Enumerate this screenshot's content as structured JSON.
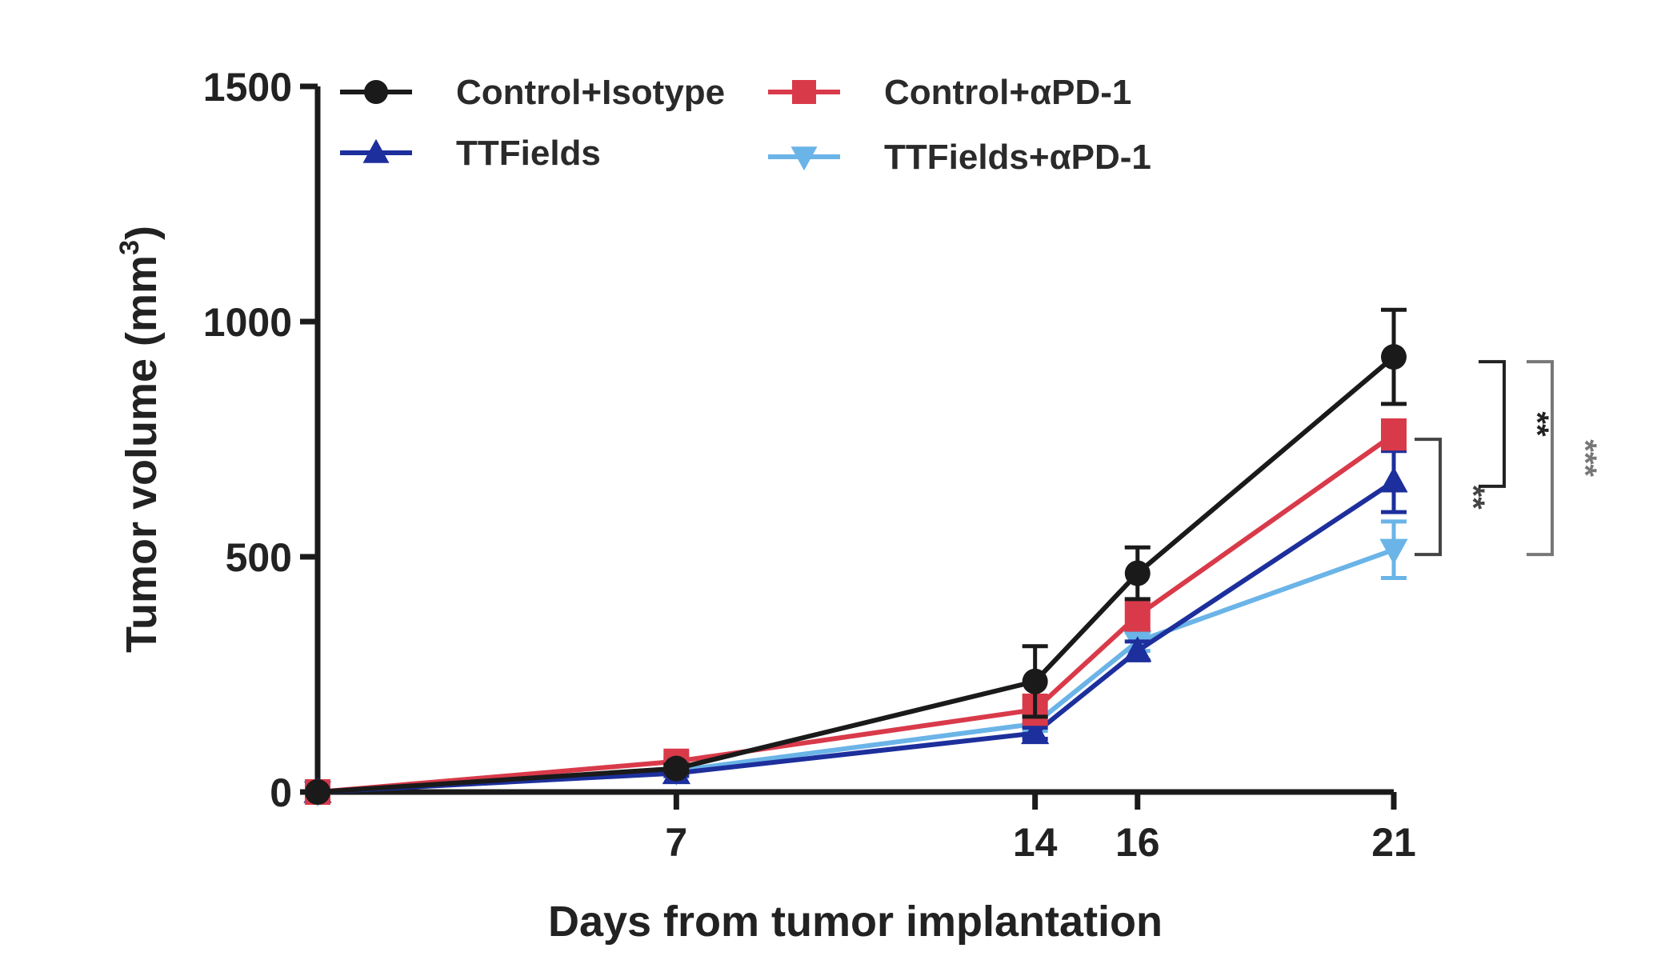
{
  "chart_data": {
    "type": "line",
    "x": [
      0,
      7,
      14,
      16,
      21
    ],
    "x_ticks": [
      "7",
      "14",
      "16",
      "21"
    ],
    "y_ticks": [
      "0",
      "500",
      "1000",
      "1500"
    ],
    "xlim": [
      0,
      21
    ],
    "ylim": [
      0,
      1500
    ],
    "xlabel": "Days from tumor implantation",
    "ylabel": "Tumor volume (mm",
    "ylabel_sup": "3",
    "ylabel_close": ")",
    "grid": false,
    "legend_position": "top",
    "series": [
      {
        "name": "Control+Isotype",
        "color": "#1a1a1a",
        "marker": "circle",
        "values": [
          0,
          50,
          235,
          465,
          925
        ],
        "errors": [
          0,
          8,
          75,
          55,
          100
        ]
      },
      {
        "name": "Control+αPD-1",
        "color": "#d93a4a",
        "marker": "square",
        "values": [
          0,
          65,
          175,
          375,
          760
        ],
        "errors": [
          0,
          8,
          30,
          30,
          30
        ]
      },
      {
        "name": "TTFields",
        "color": "#1d2f9c",
        "marker": "triangle-up",
        "values": [
          0,
          40,
          125,
          300,
          660
        ],
        "errors": [
          0,
          6,
          12,
          20,
          65
        ]
      },
      {
        "name": "TTFields+αPD-1",
        "color": "#6ab4e8",
        "marker": "triangle-down",
        "values": [
          0,
          45,
          145,
          320,
          515
        ],
        "errors": [
          0,
          6,
          15,
          20,
          60
        ]
      }
    ],
    "significance": [
      {
        "label": "**",
        "color": "#444444"
      },
      {
        "label": "**",
        "color": "#222222"
      },
      {
        "label": "***",
        "color": "#777777"
      }
    ]
  }
}
